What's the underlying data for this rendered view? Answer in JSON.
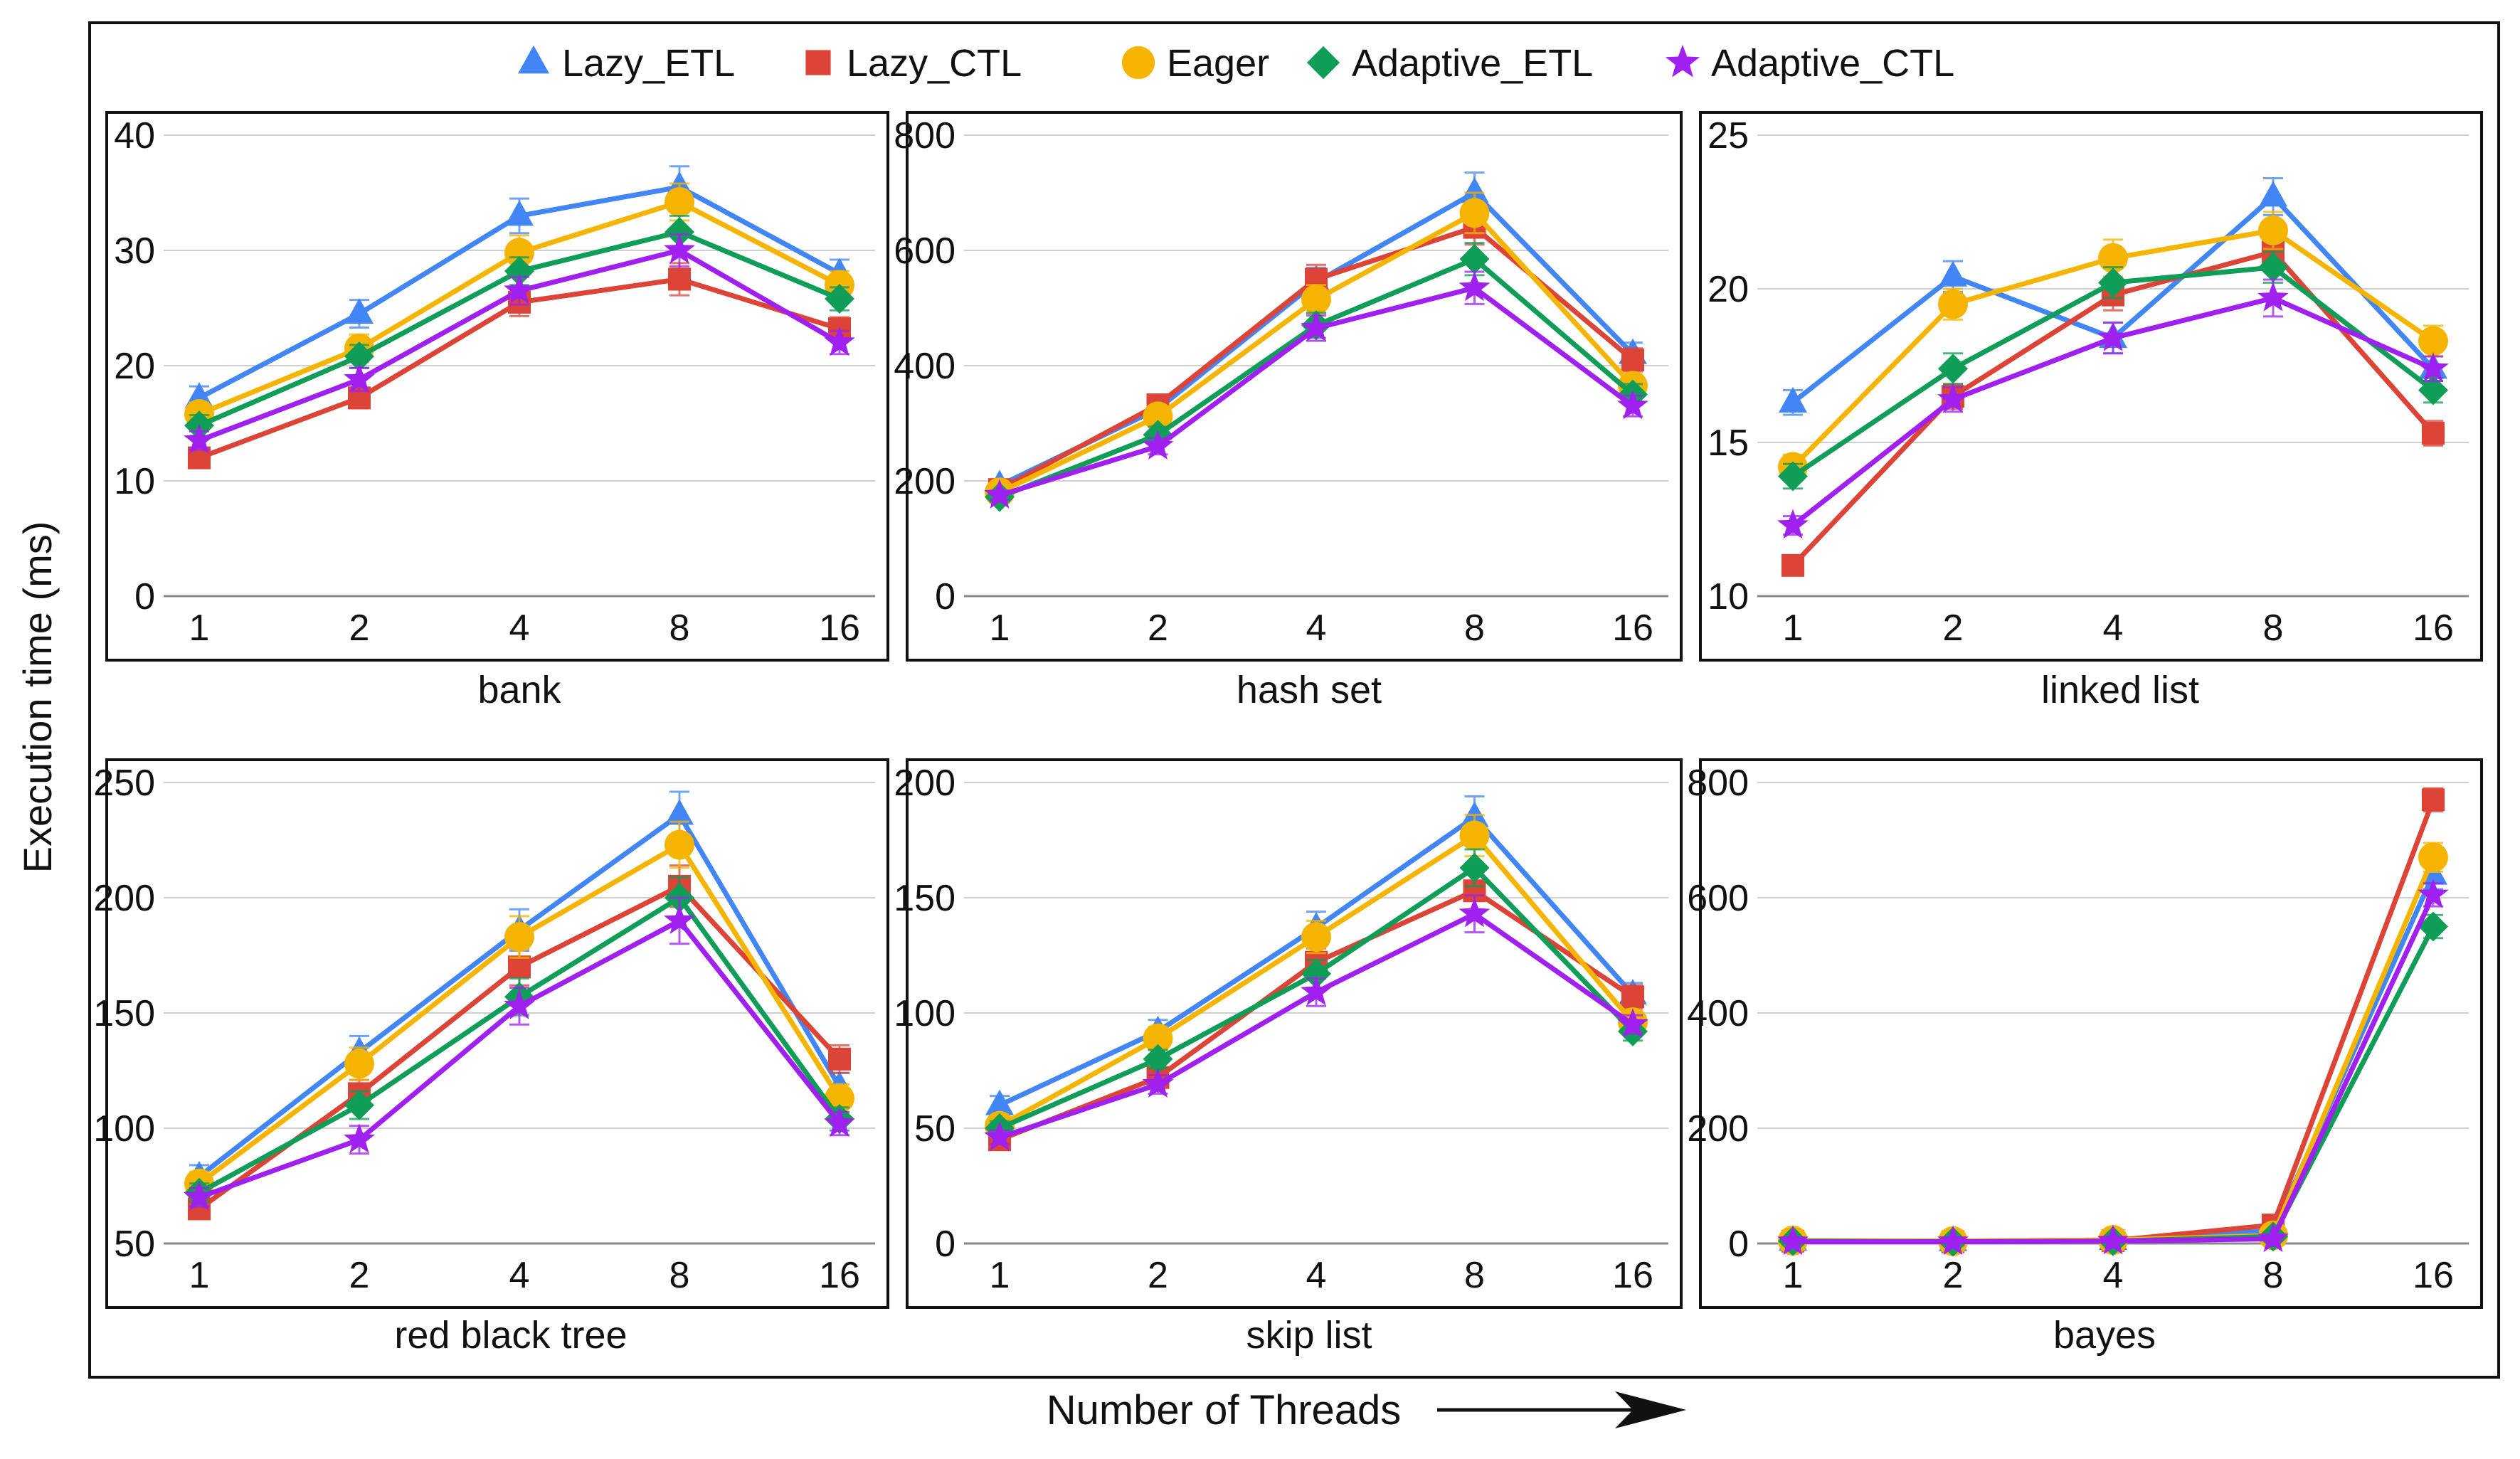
{
  "figure": {
    "ylabel": "Execution time (ms)",
    "xlabel": "Number of Threads"
  },
  "legend": [
    {
      "name": "Lazy_ETL",
      "color": "#4285F4",
      "marker": "triangle"
    },
    {
      "name": "Lazy_CTL",
      "color": "#DB4437",
      "marker": "square"
    },
    {
      "name": "Eager",
      "color": "#F4B400",
      "marker": "circle"
    },
    {
      "name": "Adaptive_ETL",
      "color": "#0F9D58",
      "marker": "diamond"
    },
    {
      "name": "Adaptive_CTL",
      "color": "#A020F0",
      "marker": "star"
    }
  ],
  "chart_data": [
    {
      "type": "line",
      "title": "bank",
      "categories": [
        "1",
        "2",
        "4",
        "8",
        "16"
      ],
      "ylim": [
        0,
        40
      ],
      "yticks": [
        0,
        10,
        20,
        30,
        40
      ],
      "series": [
        {
          "name": "Lazy_ETL",
          "values": [
            17.2,
            24.5,
            33.0,
            35.5,
            28.0
          ],
          "err": [
            1.0,
            1.2,
            1.5,
            1.8,
            1.2
          ]
        },
        {
          "name": "Lazy_CTL",
          "values": [
            12.0,
            17.2,
            25.5,
            27.5,
            23.2
          ],
          "err": [
            0.8,
            0.9,
            1.2,
            1.4,
            1.0
          ]
        },
        {
          "name": "Eager",
          "values": [
            15.8,
            21.5,
            29.8,
            34.2,
            27.0
          ],
          "err": [
            1.0,
            1.2,
            1.5,
            1.6,
            1.2
          ]
        },
        {
          "name": "Adaptive_ETL",
          "values": [
            14.8,
            20.8,
            28.2,
            31.6,
            25.8
          ],
          "err": [
            0.9,
            1.0,
            1.2,
            1.4,
            1.0
          ]
        },
        {
          "name": "Adaptive_CTL",
          "values": [
            13.5,
            18.8,
            26.5,
            30.0,
            22.0
          ],
          "err": [
            0.8,
            1.0,
            1.2,
            1.4,
            1.0
          ]
        }
      ]
    },
    {
      "type": "line",
      "title": "hash set",
      "categories": [
        "1",
        "2",
        "4",
        "8",
        "16"
      ],
      "ylim": [
        0,
        800
      ],
      "yticks": [
        0,
        200,
        400,
        600,
        800
      ],
      "series": [
        {
          "name": "Lazy_ETL",
          "values": [
            192,
            325,
            545,
            700,
            420
          ],
          "err": [
            10,
            15,
            25,
            35,
            20
          ]
        },
        {
          "name": "Lazy_CTL",
          "values": [
            185,
            332,
            550,
            640,
            410
          ],
          "err": [
            10,
            15,
            25,
            30,
            20
          ]
        },
        {
          "name": "Eager",
          "values": [
            180,
            312,
            515,
            665,
            365
          ],
          "err": [
            10,
            15,
            25,
            35,
            20
          ]
        },
        {
          "name": "Adaptive_ETL",
          "values": [
            172,
            280,
            470,
            585,
            350
          ],
          "err": [
            8,
            14,
            22,
            28,
            18
          ]
        },
        {
          "name": "Adaptive_CTL",
          "values": [
            175,
            260,
            465,
            535,
            330
          ],
          "err": [
            8,
            14,
            22,
            28,
            18
          ]
        }
      ]
    },
    {
      "type": "line",
      "title": "linked list",
      "categories": [
        "1",
        "2",
        "4",
        "8",
        "16"
      ],
      "ylim": [
        10,
        25
      ],
      "yticks": [
        10,
        15,
        20,
        25
      ],
      "series": [
        {
          "name": "Lazy_ETL",
          "values": [
            16.3,
            20.4,
            18.4,
            23.0,
            17.4
          ],
          "err": [
            0.4,
            0.5,
            0.5,
            0.6,
            0.4
          ]
        },
        {
          "name": "Lazy_CTL",
          "values": [
            11.0,
            16.5,
            19.8,
            21.2,
            15.3
          ],
          "err": [
            0.3,
            0.4,
            0.5,
            0.5,
            0.4
          ]
        },
        {
          "name": "Eager",
          "values": [
            14.2,
            19.5,
            21.0,
            21.9,
            18.3
          ],
          "err": [
            0.4,
            0.5,
            0.6,
            0.6,
            0.5
          ]
        },
        {
          "name": "Adaptive_ETL",
          "values": [
            13.9,
            17.4,
            20.2,
            20.7,
            16.7
          ],
          "err": [
            0.4,
            0.5,
            0.5,
            0.5,
            0.4
          ]
        },
        {
          "name": "Adaptive_CTL",
          "values": [
            12.3,
            16.4,
            18.4,
            19.7,
            17.4
          ],
          "err": [
            0.3,
            0.4,
            0.5,
            0.6,
            0.4
          ]
        }
      ]
    },
    {
      "type": "line",
      "title": "red black tree",
      "categories": [
        "1",
        "2",
        "4",
        "8",
        "16"
      ],
      "ylim": [
        50,
        250
      ],
      "yticks": [
        50,
        100,
        150,
        200,
        250
      ],
      "series": [
        {
          "name": "Lazy_ETL",
          "values": [
            79,
            133,
            186,
            236,
            118
          ],
          "err": [
            5,
            7,
            9,
            10,
            6
          ]
        },
        {
          "name": "Lazy_CTL",
          "values": [
            65,
            115,
            170,
            205,
            130
          ],
          "err": [
            4,
            6,
            8,
            9,
            6
          ]
        },
        {
          "name": "Eager",
          "values": [
            76,
            128,
            183,
            223,
            113
          ],
          "err": [
            5,
            7,
            9,
            10,
            6
          ]
        },
        {
          "name": "Adaptive_ETL",
          "values": [
            72,
            110,
            157,
            200,
            104
          ],
          "err": [
            4,
            6,
            8,
            9,
            5
          ]
        },
        {
          "name": "Adaptive_CTL",
          "values": [
            70,
            95,
            153,
            190,
            102
          ],
          "err": [
            4,
            6,
            8,
            10,
            5
          ]
        }
      ]
    },
    {
      "type": "line",
      "title": "skip list",
      "categories": [
        "1",
        "2",
        "4",
        "8",
        "16"
      ],
      "ylim": [
        0,
        200
      ],
      "yticks": [
        0,
        50,
        100,
        150,
        200
      ],
      "series": [
        {
          "name": "Lazy_ETL",
          "values": [
            60,
            92,
            137,
            185,
            108
          ],
          "err": [
            4,
            5,
            7,
            9,
            5
          ]
        },
        {
          "name": "Lazy_CTL",
          "values": [
            45,
            72,
            122,
            153,
            107
          ],
          "err": [
            3,
            4,
            6,
            8,
            5
          ]
        },
        {
          "name": "Eager",
          "values": [
            51,
            89,
            133,
            177,
            96
          ],
          "err": [
            3,
            5,
            7,
            9,
            5
          ]
        },
        {
          "name": "Adaptive_ETL",
          "values": [
            50,
            80,
            117,
            163,
            92
          ],
          "err": [
            3,
            4,
            6,
            8,
            4
          ]
        },
        {
          "name": "Adaptive_CTL",
          "values": [
            46,
            69,
            109,
            143,
            95
          ],
          "err": [
            3,
            4,
            6,
            8,
            4
          ]
        }
      ]
    },
    {
      "type": "line",
      "title": "bayes",
      "categories": [
        "1",
        "2",
        "4",
        "8",
        "16"
      ],
      "ylim": [
        0,
        800
      ],
      "yticks": [
        0,
        200,
        400,
        600,
        800
      ],
      "series": [
        {
          "name": "Lazy_ETL",
          "values": [
            5,
            4,
            6,
            22,
            640
          ],
          "err": [
            2,
            2,
            2,
            4,
            25
          ]
        },
        {
          "name": "Lazy_CTL",
          "values": [
            4,
            3,
            5,
            32,
            770
          ],
          "err": [
            2,
            2,
            2,
            5,
            20
          ]
        },
        {
          "name": "Eager",
          "values": [
            5,
            4,
            6,
            14,
            670
          ],
          "err": [
            2,
            2,
            2,
            4,
            25
          ]
        },
        {
          "name": "Adaptive_ETL",
          "values": [
            4,
            3,
            4,
            12,
            550
          ],
          "err": [
            2,
            2,
            2,
            3,
            20
          ]
        },
        {
          "name": "Adaptive_CTL",
          "values": [
            3,
            3,
            4,
            8,
            605
          ],
          "err": [
            2,
            2,
            2,
            3,
            20
          ]
        }
      ]
    }
  ]
}
